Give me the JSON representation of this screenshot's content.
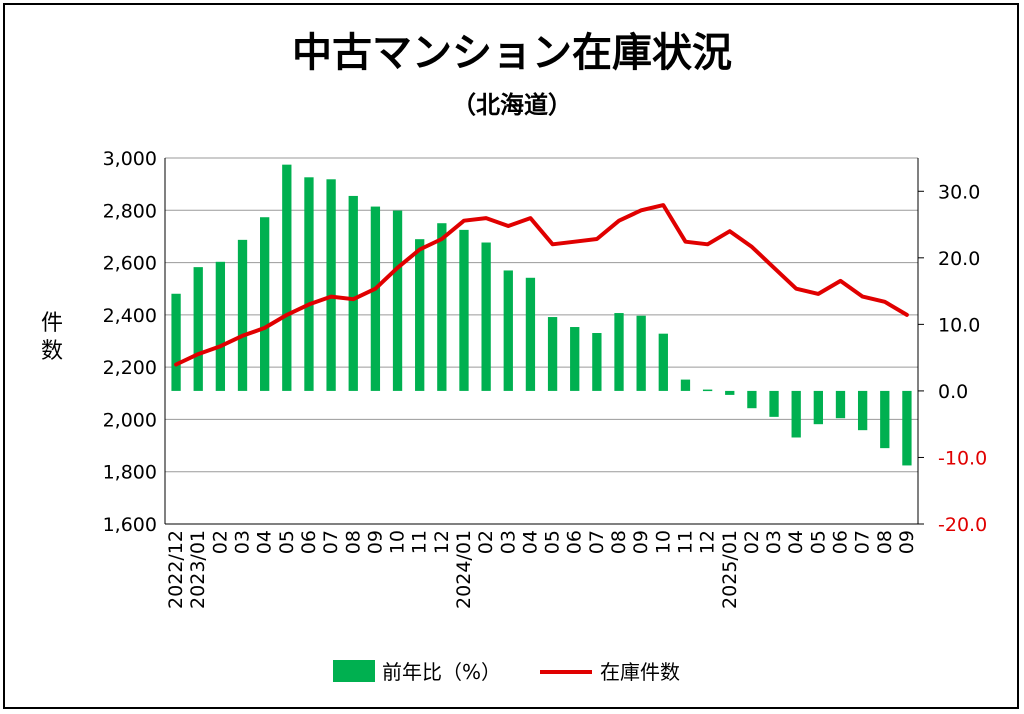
{
  "chart_data": {
    "type": "bar+line",
    "title": "中古マンション在庫状況",
    "subtitle": "（北海道）",
    "ylabel_left": "件数",
    "ylim_left": [
      1600,
      3000
    ],
    "yticks_left": [
      "1,600",
      "1,800",
      "2,000",
      "2,200",
      "2,400",
      "2,600",
      "2,800",
      "3,000"
    ],
    "ylim_right": [
      -20,
      35
    ],
    "yticks_right": [
      {
        "v": 30,
        "label": "30.0"
      },
      {
        "v": 20,
        "label": "20.0"
      },
      {
        "v": 10,
        "label": "10.0"
      },
      {
        "v": 0,
        "label": "0.0"
      },
      {
        "v": -10,
        "label": "-10.0"
      },
      {
        "v": -20,
        "label": "-20.0"
      }
    ],
    "categories": [
      "2022/12",
      "2023/01",
      "02",
      "03",
      "04",
      "05",
      "06",
      "07",
      "08",
      "09",
      "10",
      "11",
      "12",
      "2024/01",
      "02",
      "03",
      "04",
      "05",
      "06",
      "07",
      "08",
      "09",
      "10",
      "11",
      "12",
      "2025/01",
      "02",
      "03",
      "04",
      "05",
      "06",
      "07",
      "08",
      "09"
    ],
    "series": [
      {
        "name": "前年比（%）",
        "axis": "right",
        "type": "bar",
        "color": "#00b050",
        "values": [
          14.6,
          18.6,
          19.4,
          22.7,
          26.1,
          34.0,
          32.1,
          31.8,
          29.3,
          27.7,
          27.1,
          22.8,
          25.2,
          24.2,
          22.3,
          18.1,
          17.0,
          11.1,
          9.6,
          8.7,
          11.7,
          11.3,
          8.6,
          1.7,
          0.2,
          -0.6,
          -2.6,
          -3.9,
          -7.0,
          -5.0,
          -4.1,
          -5.9,
          -8.6,
          -11.2
        ]
      },
      {
        "name": "在庫件数",
        "axis": "left",
        "type": "line",
        "color": "#e00000",
        "values": [
          2210,
          2250,
          2280,
          2320,
          2350,
          2400,
          2440,
          2470,
          2460,
          2500,
          2580,
          2650,
          2690,
          2760,
          2770,
          2740,
          2770,
          2670,
          2680,
          2690,
          2760,
          2800,
          2820,
          2680,
          2670,
          2720,
          2660,
          2580,
          2500,
          2480,
          2530,
          2470,
          2450,
          2400
        ]
      }
    ]
  }
}
